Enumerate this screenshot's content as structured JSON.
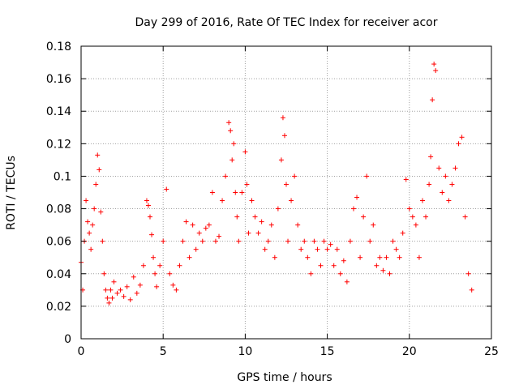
{
  "chart_data": {
    "type": "scatter",
    "title": "Day 299 of 2016, Rate Of TEC Index for receiver acor",
    "xlabel": "GPS time / hours",
    "ylabel": "ROTI / TECUs",
    "xlim": [
      0,
      25
    ],
    "ylim": [
      0,
      0.18
    ],
    "xticks": [
      "0",
      "5",
      "10",
      "15",
      "20",
      "25"
    ],
    "yticks": [
      "0",
      "0.02",
      "0.04",
      "0.06",
      "0.08",
      "0.1",
      "0.12",
      "0.14",
      "0.16",
      "0.18"
    ],
    "grid": true,
    "marker": "+",
    "color": "#ff0000",
    "series": [
      {
        "name": "ROTI",
        "x": [
          0.0,
          0.1,
          0.2,
          0.3,
          0.4,
          0.5,
          0.6,
          0.7,
          0.8,
          0.9,
          1.0,
          1.1,
          1.2,
          1.3,
          1.4,
          1.5,
          1.6,
          1.7,
          1.8,
          1.9,
          2.0,
          2.2,
          2.4,
          2.6,
          2.8,
          3.0,
          3.2,
          3.4,
          3.6,
          3.8,
          4.0,
          4.1,
          4.2,
          4.3,
          4.4,
          4.5,
          4.6,
          4.8,
          5.0,
          5.2,
          5.4,
          5.6,
          5.8,
          6.0,
          6.2,
          6.4,
          6.6,
          6.8,
          7.0,
          7.2,
          7.4,
          7.6,
          7.8,
          8.0,
          8.2,
          8.4,
          8.6,
          8.8,
          9.0,
          9.1,
          9.2,
          9.3,
          9.4,
          9.5,
          9.6,
          9.8,
          10.0,
          10.1,
          10.2,
          10.4,
          10.6,
          10.8,
          11.0,
          11.2,
          11.4,
          11.6,
          11.8,
          12.0,
          12.2,
          12.3,
          12.4,
          12.5,
          12.6,
          12.8,
          13.0,
          13.2,
          13.4,
          13.6,
          13.8,
          14.0,
          14.2,
          14.4,
          14.6,
          14.8,
          15.0,
          15.2,
          15.4,
          15.6,
          15.8,
          16.0,
          16.2,
          16.4,
          16.6,
          16.8,
          17.0,
          17.2,
          17.4,
          17.6,
          17.8,
          18.0,
          18.2,
          18.4,
          18.6,
          18.8,
          19.0,
          19.2,
          19.4,
          19.6,
          19.8,
          20.0,
          20.2,
          20.4,
          20.6,
          20.8,
          21.0,
          21.2,
          21.3,
          21.4,
          21.5,
          21.6,
          21.8,
          22.0,
          22.2,
          22.4,
          22.6,
          22.8,
          23.0,
          23.2,
          23.4,
          23.6,
          23.8
        ],
        "y": [
          0.047,
          0.03,
          0.06,
          0.085,
          0.072,
          0.065,
          0.055,
          0.07,
          0.08,
          0.095,
          0.113,
          0.104,
          0.078,
          0.06,
          0.04,
          0.03,
          0.025,
          0.022,
          0.03,
          0.025,
          0.035,
          0.028,
          0.03,
          0.026,
          0.032,
          0.024,
          0.038,
          0.028,
          0.033,
          0.045,
          0.085,
          0.082,
          0.075,
          0.064,
          0.05,
          0.04,
          0.032,
          0.045,
          0.06,
          0.092,
          0.04,
          0.033,
          0.03,
          0.045,
          0.06,
          0.072,
          0.05,
          0.07,
          0.055,
          0.065,
          0.06,
          0.068,
          0.07,
          0.09,
          0.06,
          0.063,
          0.085,
          0.1,
          0.133,
          0.128,
          0.11,
          0.12,
          0.09,
          0.075,
          0.06,
          0.09,
          0.115,
          0.095,
          0.065,
          0.085,
          0.075,
          0.065,
          0.072,
          0.055,
          0.06,
          0.07,
          0.05,
          0.08,
          0.11,
          0.136,
          0.125,
          0.095,
          0.06,
          0.085,
          0.1,
          0.07,
          0.055,
          0.06,
          0.05,
          0.04,
          0.06,
          0.055,
          0.045,
          0.06,
          0.055,
          0.058,
          0.045,
          0.055,
          0.04,
          0.048,
          0.035,
          0.06,
          0.08,
          0.087,
          0.05,
          0.075,
          0.1,
          0.06,
          0.07,
          0.045,
          0.05,
          0.042,
          0.05,
          0.04,
          0.06,
          0.055,
          0.05,
          0.065,
          0.098,
          0.08,
          0.075,
          0.07,
          0.05,
          0.085,
          0.075,
          0.095,
          0.112,
          0.147,
          0.169,
          0.165,
          0.105,
          0.09,
          0.1,
          0.085,
          0.095,
          0.105,
          0.12,
          0.124,
          0.075,
          0.04,
          0.03
        ]
      }
    ]
  }
}
